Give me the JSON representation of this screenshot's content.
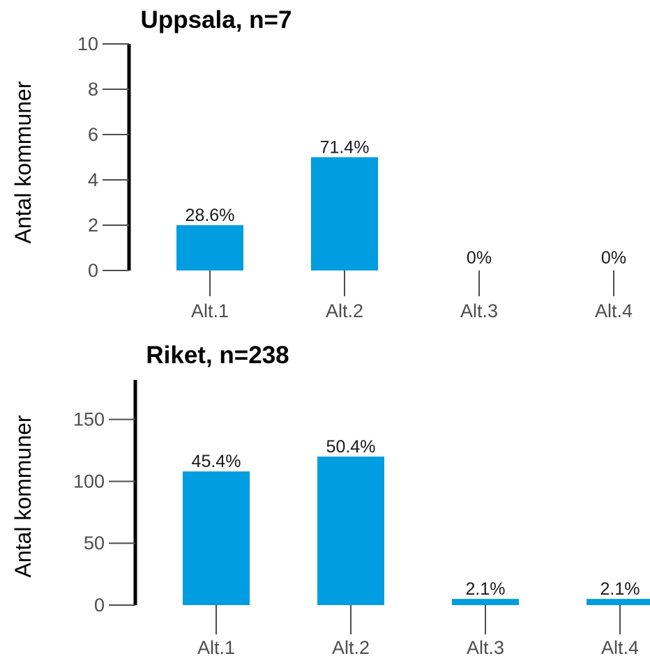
{
  "colors": {
    "bar": "#009de0",
    "axis": "#000000",
    "tick": "#4d4d4d",
    "text": "#1a1a1a"
  },
  "chart_data": [
    {
      "type": "bar",
      "title": "Uppsala, n=7",
      "ylabel": "Antal kommuner",
      "xlabel": "",
      "categories": [
        "Alt.1",
        "Alt.2",
        "Alt.3",
        "Alt.4"
      ],
      "values": [
        2,
        5,
        0,
        0
      ],
      "labels": [
        "28.6%",
        "71.4%",
        "0%",
        "0%"
      ],
      "ylim": [
        0,
        10
      ],
      "yticks": [
        0,
        2,
        4,
        6,
        8,
        10
      ],
      "ytick_labels": [
        "0",
        "2",
        "4",
        "6",
        "8",
        "10"
      ],
      "grid": false,
      "legend": "none"
    },
    {
      "type": "bar",
      "title": "Riket, n=238",
      "ylabel": "Antal kommuner",
      "xlabel": "",
      "categories": [
        "Alt.1",
        "Alt.2",
        "Alt.3",
        "Alt.4"
      ],
      "values": [
        108,
        120,
        5,
        5
      ],
      "labels": [
        "45.4%",
        "50.4%",
        "2.1%",
        "2.1%"
      ],
      "ylim": [
        0,
        180
      ],
      "yticks": [
        0,
        50,
        100,
        150
      ],
      "ytick_labels": [
        "0",
        "50",
        "100",
        "150"
      ],
      "grid": false,
      "legend": "none"
    }
  ]
}
